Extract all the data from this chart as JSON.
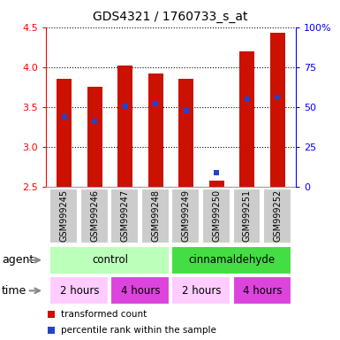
{
  "title": "GDS4321 / 1760733_s_at",
  "samples": [
    "GSM999245",
    "GSM999246",
    "GSM999247",
    "GSM999248",
    "GSM999249",
    "GSM999250",
    "GSM999251",
    "GSM999252"
  ],
  "bar_tops": [
    3.85,
    3.75,
    4.02,
    3.92,
    3.85,
    2.58,
    4.2,
    4.43
  ],
  "bar_bottom": 2.5,
  "blue_marker_y": [
    3.38,
    3.32,
    3.51,
    3.54,
    3.46,
    2.68,
    3.6,
    3.62
  ],
  "ylim": [
    2.5,
    4.5
  ],
  "y2lim": [
    0,
    100
  ],
  "yticks_left": [
    2.5,
    3.0,
    3.5,
    4.0,
    4.5
  ],
  "yticks_right": [
    0,
    25,
    50,
    75,
    100
  ],
  "bar_color": "#cc1100",
  "blue_color": "#2244cc",
  "agent_groups": [
    {
      "label": "control",
      "start": 0,
      "end": 3,
      "color": "#bbffbb"
    },
    {
      "label": "cinnamaldehyde",
      "start": 4,
      "end": 7,
      "color": "#44dd44"
    }
  ],
  "time_groups": [
    {
      "label": "2 hours",
      "start": 0,
      "end": 1,
      "color": "#ffccff"
    },
    {
      "label": "4 hours",
      "start": 2,
      "end": 3,
      "color": "#dd44dd"
    },
    {
      "label": "2 hours",
      "start": 4,
      "end": 5,
      "color": "#ffccff"
    },
    {
      "label": "4 hours",
      "start": 6,
      "end": 7,
      "color": "#dd44dd"
    }
  ],
  "legend_red_label": "transformed count",
  "legend_blue_label": "percentile rank within the sample"
}
